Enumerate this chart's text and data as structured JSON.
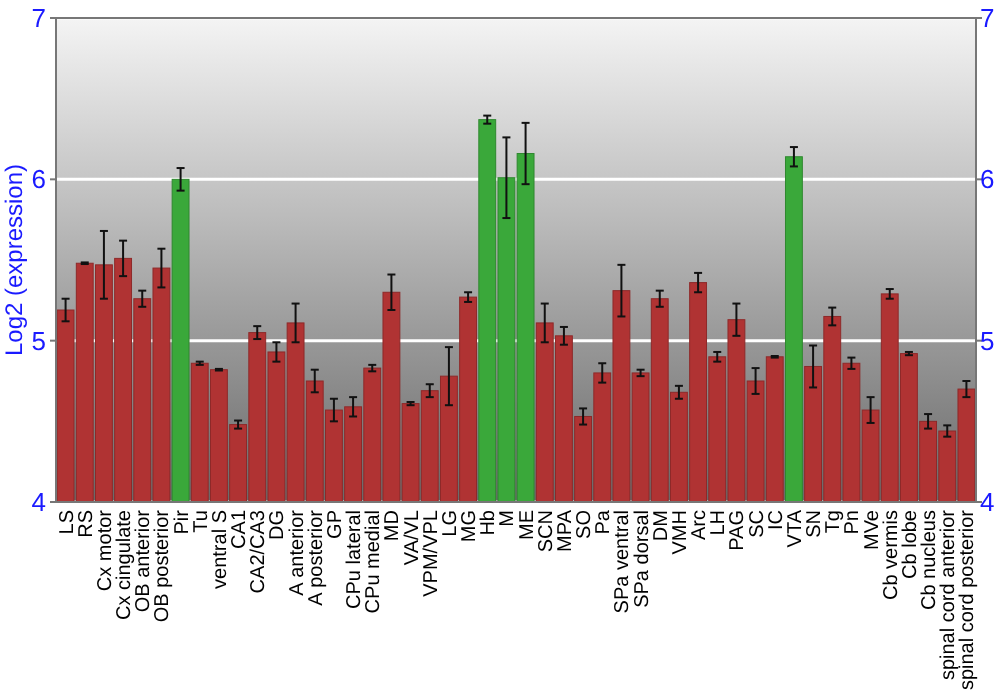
{
  "chart_data": {
    "type": "bar",
    "ylabel": "Log2 (expression)",
    "categories": [
      "LS",
      "RS",
      "Cx motor",
      "Cx cingulate",
      "OB anterior",
      "OB posterior",
      "Pir",
      "Tu",
      "ventral S",
      "CA1",
      "CA2/CA3",
      "DG",
      "A anterior",
      "A posterior",
      "GP",
      "CPu lateral",
      "CPu medial",
      "MD",
      "VA/VL",
      "VPM/VPL",
      "LG",
      "MG",
      "Hb",
      "M",
      "ME",
      "SCN",
      "MPA",
      "SO",
      "Pa",
      "SPa ventral",
      "SPa dorsal",
      "DM",
      "VMH",
      "Arc",
      "LH",
      "PAG",
      "SC",
      "IC",
      "VTA",
      "SN",
      "Tg",
      "Pn",
      "MVe",
      "Cb vermis",
      "Cb lobe",
      "Cb nucleus",
      "spinal cord anterior",
      "spinal cord posterior"
    ],
    "values": [
      5.19,
      5.48,
      5.47,
      5.51,
      5.26,
      5.45,
      6.0,
      4.86,
      4.82,
      4.48,
      5.05,
      4.93,
      5.11,
      4.75,
      4.57,
      4.59,
      4.83,
      5.3,
      4.61,
      4.69,
      4.78,
      5.27,
      6.37,
      6.01,
      6.16,
      5.11,
      5.03,
      4.53,
      4.8,
      5.31,
      4.8,
      5.26,
      4.68,
      5.36,
      4.9,
      5.13,
      4.75,
      4.9,
      6.14,
      4.84,
      5.15,
      4.86,
      4.57,
      5.29,
      4.92,
      4.5,
      4.44,
      4.7
    ],
    "errors": [
      0.07,
      0.005,
      0.21,
      0.11,
      0.05,
      0.12,
      0.07,
      0.01,
      0.005,
      0.025,
      0.04,
      0.06,
      0.12,
      0.07,
      0.07,
      0.06,
      0.02,
      0.11,
      0.01,
      0.04,
      0.18,
      0.03,
      0.025,
      0.25,
      0.19,
      0.12,
      0.055,
      0.05,
      0.06,
      0.16,
      0.02,
      0.05,
      0.04,
      0.06,
      0.03,
      0.1,
      0.08,
      0.005,
      0.06,
      0.13,
      0.055,
      0.035,
      0.08,
      0.03,
      0.01,
      0.045,
      0.035,
      0.05
    ],
    "colors": [
      "#b03333",
      "#b03333",
      "#b03333",
      "#b03333",
      "#b03333",
      "#b03333",
      "#3aa83a",
      "#b03333",
      "#b03333",
      "#b03333",
      "#b03333",
      "#b03333",
      "#b03333",
      "#b03333",
      "#b03333",
      "#b03333",
      "#b03333",
      "#b03333",
      "#b03333",
      "#b03333",
      "#b03333",
      "#b03333",
      "#3aa83a",
      "#3aa83a",
      "#3aa83a",
      "#b03333",
      "#b03333",
      "#b03333",
      "#b03333",
      "#b03333",
      "#b03333",
      "#b03333",
      "#b03333",
      "#b03333",
      "#b03333",
      "#b03333",
      "#b03333",
      "#b03333",
      "#3aa83a",
      "#b03333",
      "#b03333",
      "#b03333",
      "#b03333",
      "#b03333",
      "#b03333",
      "#b03333",
      "#b03333",
      "#b03333"
    ],
    "ylim": [
      4,
      7
    ],
    "yticks": [
      4,
      5,
      6,
      7
    ],
    "y2lim": [
      4,
      7
    ],
    "y2ticks": [
      4,
      5,
      6,
      7
    ],
    "grid": "y"
  }
}
